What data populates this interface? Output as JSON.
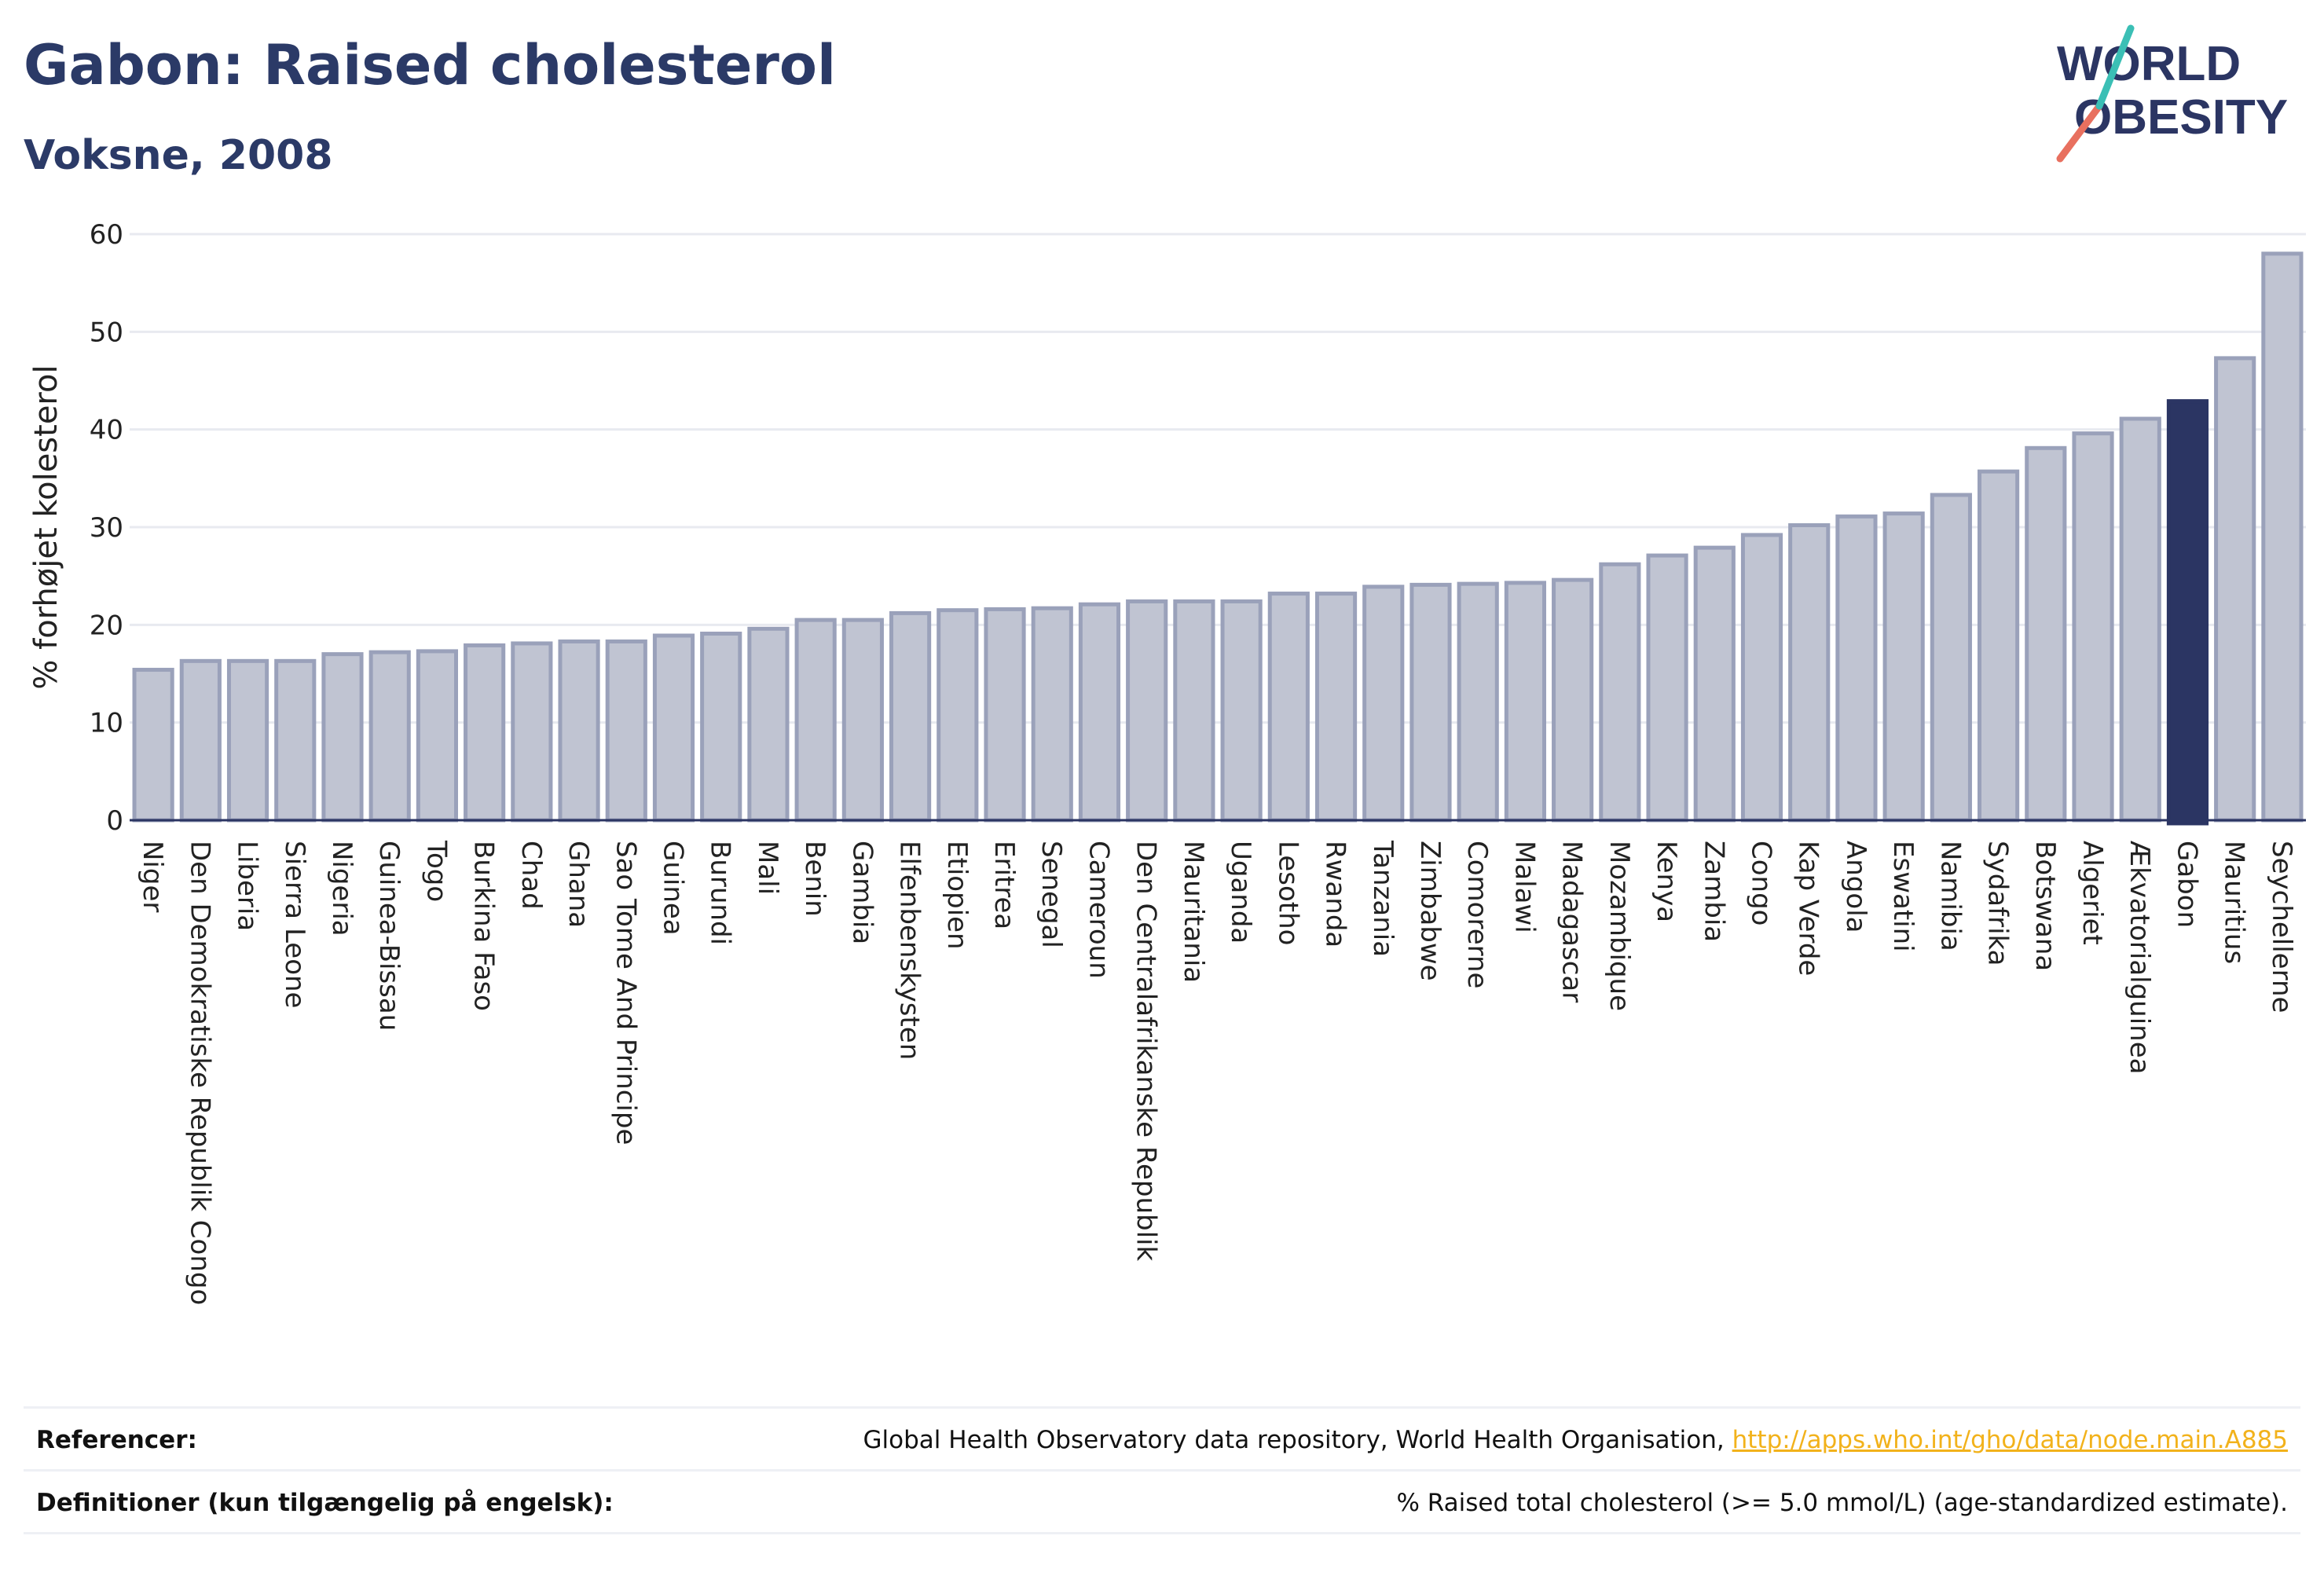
{
  "header": {
    "title": "Gabon: Raised cholesterol",
    "subtitle": "Voksne, 2008"
  },
  "logo": {
    "line1": "WORLD",
    "line2": "OBESITY"
  },
  "colors": {
    "bar": "#c0c4d2",
    "bar_border": "#9aa1ba",
    "highlight": "#2b3563",
    "axis_text": "#222222",
    "grid": "#e8eaf0",
    "link": "#f2b21b",
    "logo_teal": "#3bbfb5",
    "logo_coral": "#e8705f"
  },
  "chart_data": {
    "type": "bar",
    "ylabel": "% forhøjet kolesterol",
    "ylim": [
      0,
      60
    ],
    "yticks": [
      0,
      10,
      20,
      30,
      40,
      50,
      60
    ],
    "highlight": "Gabon",
    "grid": true,
    "categories": [
      "Niger",
      "Den Demokratiske Republik Congo",
      "Liberia",
      "Sierra Leone",
      "Nigeria",
      "Guinea-Bissau",
      "Togo",
      "Burkina Faso",
      "Chad",
      "Ghana",
      "Sao Tome And Principe",
      "Guinea",
      "Burundi",
      "Mali",
      "Benin",
      "Gambia",
      "Elfenbenskysten",
      "Etiopien",
      "Eritrea",
      "Senegal",
      "Cameroun",
      "Den Centralafrikanske Republik",
      "Mauritania",
      "Uganda",
      "Lesotho",
      "Rwanda",
      "Tanzania",
      "Zimbabwe",
      "Comorerne",
      "Malawi",
      "Madagascar",
      "Mozambique",
      "Kenya",
      "Zambia",
      "Congo",
      "Kap Verde",
      "Angola",
      "Eswatini",
      "Namibia",
      "Sydafrika",
      "Botswana",
      "Algeriet",
      "Ækvatorialguinea",
      "Gabon",
      "Mauritius",
      "Seychellerne"
    ],
    "values": [
      15.4,
      16.3,
      16.3,
      16.3,
      17.0,
      17.2,
      17.3,
      17.9,
      18.1,
      18.3,
      18.3,
      18.9,
      19.1,
      19.6,
      20.5,
      20.5,
      21.2,
      21.5,
      21.6,
      21.7,
      22.1,
      22.4,
      22.4,
      22.4,
      23.2,
      23.2,
      23.9,
      24.1,
      24.2,
      24.3,
      24.6,
      26.2,
      27.1,
      27.9,
      29.2,
      30.2,
      31.1,
      31.4,
      33.3,
      35.7,
      38.1,
      39.6,
      41.1,
      42.9,
      47.3,
      58.0
    ]
  },
  "footer": {
    "references_label": "Referencer:",
    "references_text": "Global Health Observatory data repository, World Health Organisation, ",
    "references_link": "http://apps.who.int/gho/data/node.main.A885",
    "definitions_label": "Definitioner (kun tilgængelig på engelsk):",
    "definitions_text": "% Raised total cholesterol (>= 5.0 mmol/L) (age-standardized estimate)."
  }
}
